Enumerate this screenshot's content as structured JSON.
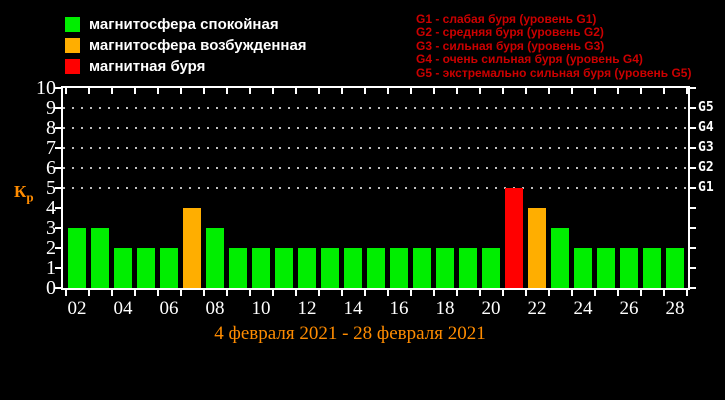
{
  "colors": {
    "background": "#000000",
    "axis": "#ffffff",
    "grid_dots": "#bdbdbd",
    "quiet": "#00ee00",
    "excited": "#ffae00",
    "storm": "#ff0000",
    "accent_orange": "#ff8c00",
    "g_info_red": "#cc0000"
  },
  "legend": {
    "items": [
      {
        "status": "quiet",
        "label": "магнитосфера спокойная"
      },
      {
        "status": "excited",
        "label": "магнитосфера возбужденная"
      },
      {
        "status": "storm",
        "label": "магнитная буря"
      }
    ]
  },
  "g_scale_info": {
    "lines": [
      "G1 - слабая буря (уровень G1)",
      "G2 - средняя буря (уровень G2)",
      "G3 - сильная буря (уровень G3)",
      "G4 - очень сильная буря (уровень G4)",
      "G5 - экстремально сильная буря (уровень G5)"
    ]
  },
  "axis": {
    "kp_label": "К",
    "kp_sub": "р"
  },
  "caption": {
    "text": "4 февраля 2021 - 28 февраля 2021"
  },
  "chart_data": {
    "type": "bar",
    "title": "4 февраля 2021 - 28 февраля 2021",
    "xlabel": "",
    "ylabel": "Кр",
    "ylim": [
      0,
      10
    ],
    "y_ticks": [
      0,
      1,
      2,
      3,
      4,
      5,
      6,
      7,
      8,
      9,
      10
    ],
    "x_tick_labels": [
      "02",
      "04",
      "06",
      "08",
      "10",
      "12",
      "14",
      "16",
      "18",
      "20",
      "22",
      "24",
      "26",
      "28"
    ],
    "gridlines_kp": [
      5,
      6,
      7,
      8,
      9
    ],
    "right_axis_labels": [
      {
        "label": "G1",
        "kp": 5
      },
      {
        "label": "G2",
        "kp": 6
      },
      {
        "label": "G3",
        "kp": 7
      },
      {
        "label": "G4",
        "kp": 8
      },
      {
        "label": "G5",
        "kp": 9
      }
    ],
    "days": [
      2,
      3,
      4,
      5,
      6,
      7,
      8,
      9,
      10,
      11,
      12,
      13,
      14,
      15,
      16,
      17,
      18,
      19,
      20,
      21,
      22,
      23,
      24,
      25,
      26,
      27,
      28
    ],
    "values": [
      3,
      3,
      2,
      2,
      2,
      4,
      3,
      2,
      2,
      2,
      2,
      2,
      2,
      2,
      2,
      2,
      2,
      2,
      2,
      5,
      4,
      3,
      2,
      2,
      2,
      2,
      2
    ],
    "statuses": [
      "quiet",
      "quiet",
      "quiet",
      "quiet",
      "quiet",
      "excited",
      "quiet",
      "quiet",
      "quiet",
      "quiet",
      "quiet",
      "quiet",
      "quiet",
      "quiet",
      "quiet",
      "quiet",
      "quiet",
      "quiet",
      "quiet",
      "storm",
      "excited",
      "quiet",
      "quiet",
      "quiet",
      "quiet",
      "quiet",
      "quiet"
    ]
  }
}
